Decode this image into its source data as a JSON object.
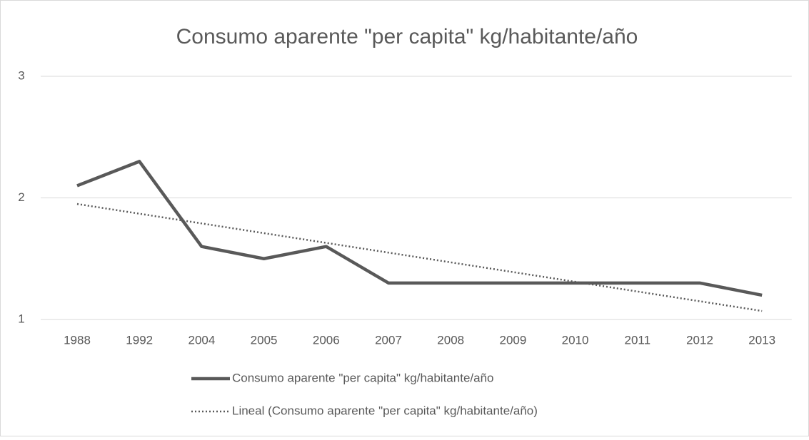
{
  "chart_data": {
    "type": "line",
    "title": "Consumo aparente \"per capita\" kg/habitante/año",
    "categories": [
      "1988",
      "1992",
      "2004",
      "2005",
      "2006",
      "2007",
      "2008",
      "2009",
      "2010",
      "2011",
      "2012",
      "2013"
    ],
    "series": [
      {
        "name": "Consumo aparente \"per capita\" kg/habitante/año",
        "color": "#595959",
        "style": "solid",
        "values": [
          2.1,
          2.3,
          1.6,
          1.5,
          1.6,
          1.3,
          1.3,
          1.3,
          1.3,
          1.3,
          1.3,
          1.2
        ]
      },
      {
        "name": "Lineal (Consumo aparente \"per capita\" kg/habitante/año)",
        "color": "#595959",
        "style": "dotted",
        "values": [
          1.95,
          1.87,
          1.79,
          1.71,
          1.63,
          1.55,
          1.47,
          1.39,
          1.31,
          1.23,
          1.15,
          1.07
        ]
      }
    ],
    "ylim": [
      1,
      3
    ],
    "yticks": [
      1,
      2,
      3
    ],
    "grid": true,
    "legend": "bottom"
  }
}
